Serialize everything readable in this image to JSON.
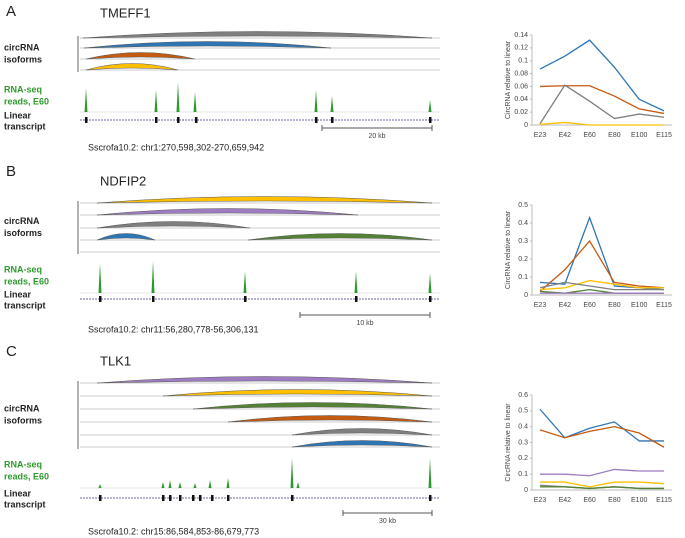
{
  "panels": [
    {
      "label": "A",
      "gene": "TMEFF1",
      "isoforms_label": [
        "circRNA",
        "isoforms"
      ],
      "reads_label": [
        "RNA-seq",
        "reads, E60"
      ],
      "transcript_label": [
        "Linear",
        "transcript"
      ],
      "scale": "20 kb",
      "coords": "Sscrofa10.2: chr1:270,598,302-270,659,942"
    },
    {
      "label": "B",
      "gene": "NDFIP2",
      "isoforms_label": [
        "circRNA",
        "isoforms"
      ],
      "reads_label": [
        "RNA-seq",
        "reads, E60"
      ],
      "transcript_label": [
        "Linear",
        "transcript"
      ],
      "scale": "10 kb",
      "coords": "Sscrofa10.2: chr11:56,280,778-56,306,131"
    },
    {
      "label": "C",
      "gene": "TLK1",
      "isoforms_label": [
        "circRNA",
        "isoforms"
      ],
      "reads_label": [
        "RNA-seq",
        "reads, E60"
      ],
      "transcript_label": [
        "Linear",
        "transcript"
      ],
      "scale": "30 kb",
      "coords": "Sscrofa10.2: chr15:86,584,853-86,679,773"
    }
  ],
  "chart_data": [
    {
      "type": "line",
      "y_label": "CircRNA relative to linear",
      "categories": [
        "E23",
        "E42",
        "E60",
        "E80",
        "E100",
        "E115"
      ],
      "ylim": [
        0,
        0.14
      ],
      "yticks": [
        0,
        0.02,
        0.04,
        0.06,
        0.08,
        0.1,
        0.12,
        0.14
      ],
      "series": [
        {
          "color": "#2e75b6",
          "values": [
            0.087,
            0.107,
            0.132,
            0.09,
            0.04,
            0.022
          ]
        },
        {
          "color": "#c55a11",
          "values": [
            0.06,
            0.061,
            0.061,
            0.045,
            0.025,
            0.018
          ]
        },
        {
          "color": "#7f7f7f",
          "values": [
            0.002,
            0.062,
            0.037,
            0.01,
            0.017,
            0.012
          ]
        },
        {
          "color": "#ffc000",
          "values": [
            0.001,
            0.004,
            0,
            0,
            0,
            0
          ]
        }
      ]
    },
    {
      "type": "line",
      "y_label": "CircRNA relative to linear",
      "categories": [
        "E23",
        "E42",
        "E60",
        "E80",
        "E100",
        "E115"
      ],
      "ylim": [
        0,
        0.5
      ],
      "yticks": [
        0,
        0.1,
        0.2,
        0.3,
        0.4,
        0.5
      ],
      "series": [
        {
          "color": "#2e75b6",
          "values": [
            0.07,
            0.06,
            0.43,
            0.05,
            0.04,
            0.03
          ]
        },
        {
          "color": "#c55a11",
          "values": [
            0.02,
            0.14,
            0.3,
            0.07,
            0.05,
            0.04
          ]
        },
        {
          "color": "#ffc000",
          "values": [
            0.03,
            0.04,
            0.08,
            0.06,
            0.04,
            0.04
          ]
        },
        {
          "color": "#7f7f7f",
          "values": [
            0.04,
            0.07,
            0.05,
            0.03,
            0.03,
            0.03
          ]
        },
        {
          "color": "#548235",
          "values": [
            0.02,
            0.01,
            0.03,
            0.01,
            0.01,
            0.01
          ]
        },
        {
          "color": "#9e7cc1",
          "values": [
            0.01,
            0.01,
            0.01,
            0.01,
            0.01,
            0.01
          ]
        }
      ]
    },
    {
      "type": "line",
      "y_label": "CircRNA relative to linear",
      "categories": [
        "E23",
        "E42",
        "E60",
        "E80",
        "E100",
        "E115"
      ],
      "ylim": [
        0,
        0.6
      ],
      "yticks": [
        0,
        0.1,
        0.2,
        0.3,
        0.4,
        0.5,
        0.6
      ],
      "series": [
        {
          "color": "#2e75b6",
          "values": [
            0.51,
            0.33,
            0.39,
            0.43,
            0.31,
            0.31
          ]
        },
        {
          "color": "#c55a11",
          "values": [
            0.38,
            0.33,
            0.37,
            0.4,
            0.36,
            0.27
          ]
        },
        {
          "color": "#9e7cc1",
          "values": [
            0.1,
            0.1,
            0.09,
            0.13,
            0.12,
            0.12
          ]
        },
        {
          "color": "#ffc000",
          "values": [
            0.05,
            0.05,
            0.02,
            0.05,
            0.05,
            0.04
          ]
        },
        {
          "color": "#7f7f7f",
          "values": [
            0.03,
            0.02,
            0.01,
            0.02,
            0.01,
            0.01
          ]
        },
        {
          "color": "#548235",
          "values": [
            0.02,
            0.02,
            0.01,
            0.02,
            0.01,
            0.01
          ]
        }
      ]
    }
  ]
}
